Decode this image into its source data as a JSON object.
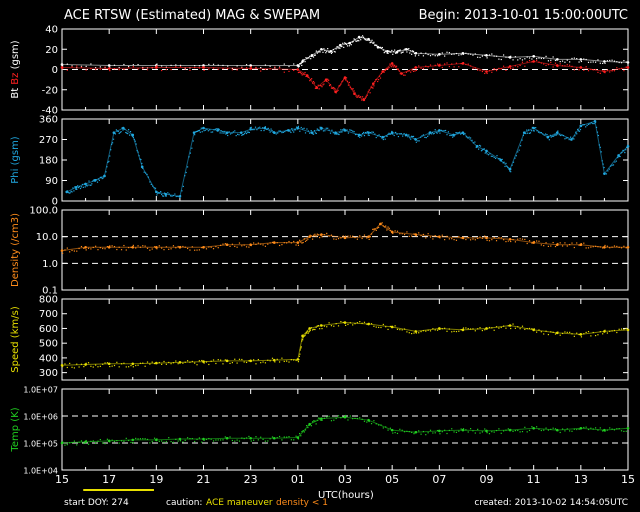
{
  "header": {
    "title": "ACE RTSW (Estimated) MAG & SWEPAM",
    "begin": "Begin: 2013-10-01 15:00:00UTC"
  },
  "footer": {
    "start_doy": "start DOY: 274",
    "caution_label": "caution:",
    "caution_maneuver": "ACE maneuver",
    "caution_density": "density < 1",
    "created": "created: 2013-10-02 14:54:05UTC"
  },
  "colors": {
    "background": "#000000",
    "axes": "#ffffff",
    "bt": "#ffffff",
    "bz": "#ff2020",
    "phi": "#20a8e0",
    "density": "#ff8c1a",
    "speed": "#e8e000",
    "temp": "#20d020",
    "maneuver": "#e8e000",
    "caution_density": "#ff8c1a"
  },
  "chart_data": {
    "type": "scatter",
    "xlabel": "UTC(hours)",
    "x_ticks": [
      "15",
      "17",
      "19",
      "21",
      "23",
      "01",
      "03",
      "05",
      "07",
      "09",
      "11",
      "13",
      "15"
    ],
    "xlim_hours": [
      0,
      24
    ],
    "panels": [
      {
        "name": "mag",
        "ylabel_parts": [
          "Bt",
          "Bz",
          "(gsm)"
        ],
        "ylim": [
          -40,
          40
        ],
        "yticks": [
          "40",
          "20",
          "0",
          "-20",
          "-40"
        ],
        "dashed_ref": [
          0
        ],
        "series": [
          {
            "name": "Bt",
            "color_key": "bt",
            "x": [
              0,
              2,
              4,
              6,
              8,
              10,
              10.2,
              10.6,
              11,
              11.4,
              11.8,
              12.2,
              12.6,
              13.0,
              13.4,
              13.8,
              14.2,
              14.6,
              15,
              16,
              17,
              18,
              19,
              20,
              21,
              22,
              23,
              24
            ],
            "y": [
              5,
              4,
              4,
              4,
              4,
              4,
              8,
              14,
              20,
              18,
              24,
              26,
              32,
              30,
              22,
              18,
              17,
              20,
              16,
              15,
              16,
              14,
              12,
              13,
              10,
              10,
              8,
              7
            ]
          },
          {
            "name": "Bz",
            "color_key": "bz",
            "x": [
              0,
              2,
              4,
              6,
              8,
              10,
              10.4,
              10.8,
              11.2,
              11.6,
              12,
              12.4,
              12.8,
              13.2,
              13.6,
              14,
              14.4,
              15,
              16,
              17,
              18,
              19,
              20,
              21,
              22,
              23,
              24
            ],
            "y": [
              2,
              1,
              2,
              2,
              1,
              0,
              -6,
              -18,
              -10,
              -22,
              -8,
              -24,
              -30,
              -14,
              -2,
              6,
              -4,
              2,
              4,
              6,
              -2,
              3,
              8,
              4,
              2,
              -2,
              2
            ]
          }
        ]
      },
      {
        "name": "phi",
        "ylabel": "Phi (gsm)",
        "ylim": [
          0,
          360
        ],
        "yticks": [
          "360",
          "270",
          "180",
          "90",
          "0"
        ],
        "series": [
          {
            "name": "Phi",
            "color_key": "phi",
            "x": [
              0.2,
              0.6,
              1,
              1.4,
              1.8,
              2.2,
              2.6,
              3,
              3.4,
              4,
              4.4,
              5,
              5.6,
              6,
              6.6,
              7,
              7.6,
              8,
              8.6,
              9,
              9.6,
              10,
              10.6,
              11,
              11.6,
              12,
              12.6,
              13,
              13.6,
              14,
              14.6,
              15,
              15.6,
              16,
              16.6,
              17,
              17.6,
              18,
              18.6,
              19,
              19.6,
              20,
              20.6,
              21,
              21.6,
              22,
              22.6,
              23,
              23.6,
              24
            ],
            "y": [
              40,
              60,
              75,
              90,
              110,
              300,
              320,
              290,
              150,
              40,
              30,
              20,
              300,
              320,
              310,
              300,
              300,
              315,
              320,
              300,
              310,
              320,
              300,
              320,
              300,
              310,
              290,
              300,
              280,
              300,
              290,
              270,
              300,
              310,
              290,
              300,
              240,
              220,
              180,
              140,
              300,
              320,
              280,
              300,
              270,
              330,
              350,
              120,
              200,
              240
            ]
          }
        ]
      },
      {
        "name": "density",
        "ylabel": "Density (/cm3)",
        "yscale": "log",
        "ylim": [
          0.1,
          100.0
        ],
        "yticks": [
          "100.0",
          "10.0",
          "1.0",
          "0.1"
        ],
        "dashed_ref": [
          10.0,
          1.0
        ],
        "series": [
          {
            "name": "Density",
            "color_key": "density",
            "x": [
              0,
              1,
              2,
              3,
              4,
              5,
              6,
              7,
              8,
              9,
              10,
              10.5,
              11,
              12,
              13,
              13.5,
              14,
              15,
              16,
              17,
              18,
              19,
              20,
              21,
              22,
              23,
              24
            ],
            "y": [
              3,
              4,
              4,
              4,
              4,
              4,
              4,
              5,
              5,
              6,
              6,
              10,
              12,
              9,
              10,
              30,
              15,
              12,
              10,
              9,
              9,
              8,
              6,
              5,
              5,
              4,
              4
            ]
          }
        ]
      },
      {
        "name": "speed",
        "ylabel": "Speed (km/s)",
        "ylim": [
          250,
          800
        ],
        "yticks": [
          "800",
          "700",
          "600",
          "500",
          "400",
          "300"
        ],
        "series": [
          {
            "name": "Speed",
            "color_key": "speed",
            "x": [
              0,
              1,
              2,
              3,
              4,
              5,
              6,
              7,
              8,
              9,
              10,
              10.2,
              10.5,
              11,
              12,
              13,
              14,
              15,
              16,
              17,
              18,
              19,
              20,
              21,
              22,
              23,
              24
            ],
            "y": [
              350,
              355,
              360,
              360,
              365,
              370,
              375,
              380,
              380,
              385,
              390,
              550,
              600,
              620,
              640,
              630,
              610,
              580,
              600,
              590,
              600,
              620,
              590,
              570,
              560,
              580,
              590
            ]
          }
        ]
      },
      {
        "name": "temp",
        "ylabel": "Temp (K)",
        "yscale": "log",
        "ylim": [
          10000,
          10000000
        ],
        "yticks": [
          "1.0E+07",
          "1.0E+06",
          "1.0E+05",
          "1.0E+04"
        ],
        "dashed_ref": [
          1000000,
          100000
        ],
        "series": [
          {
            "name": "Temp",
            "color_key": "temp",
            "x": [
              0,
              1,
              2,
              3,
              4,
              5,
              6,
              7,
              8,
              9,
              10,
              10.5,
              11,
              12,
              13,
              14,
              15,
              16,
              17,
              18,
              19,
              20,
              21,
              22,
              23,
              24
            ],
            "y": [
              100000,
              110000,
              120000,
              130000,
              130000,
              140000,
              140000,
              150000,
              150000,
              150000,
              160000,
              500000,
              800000,
              900000,
              700000,
              300000,
              250000,
              280000,
              300000,
              280000,
              300000,
              350000,
              300000,
              350000,
              300000,
              350000
            ]
          }
        ]
      }
    ]
  }
}
